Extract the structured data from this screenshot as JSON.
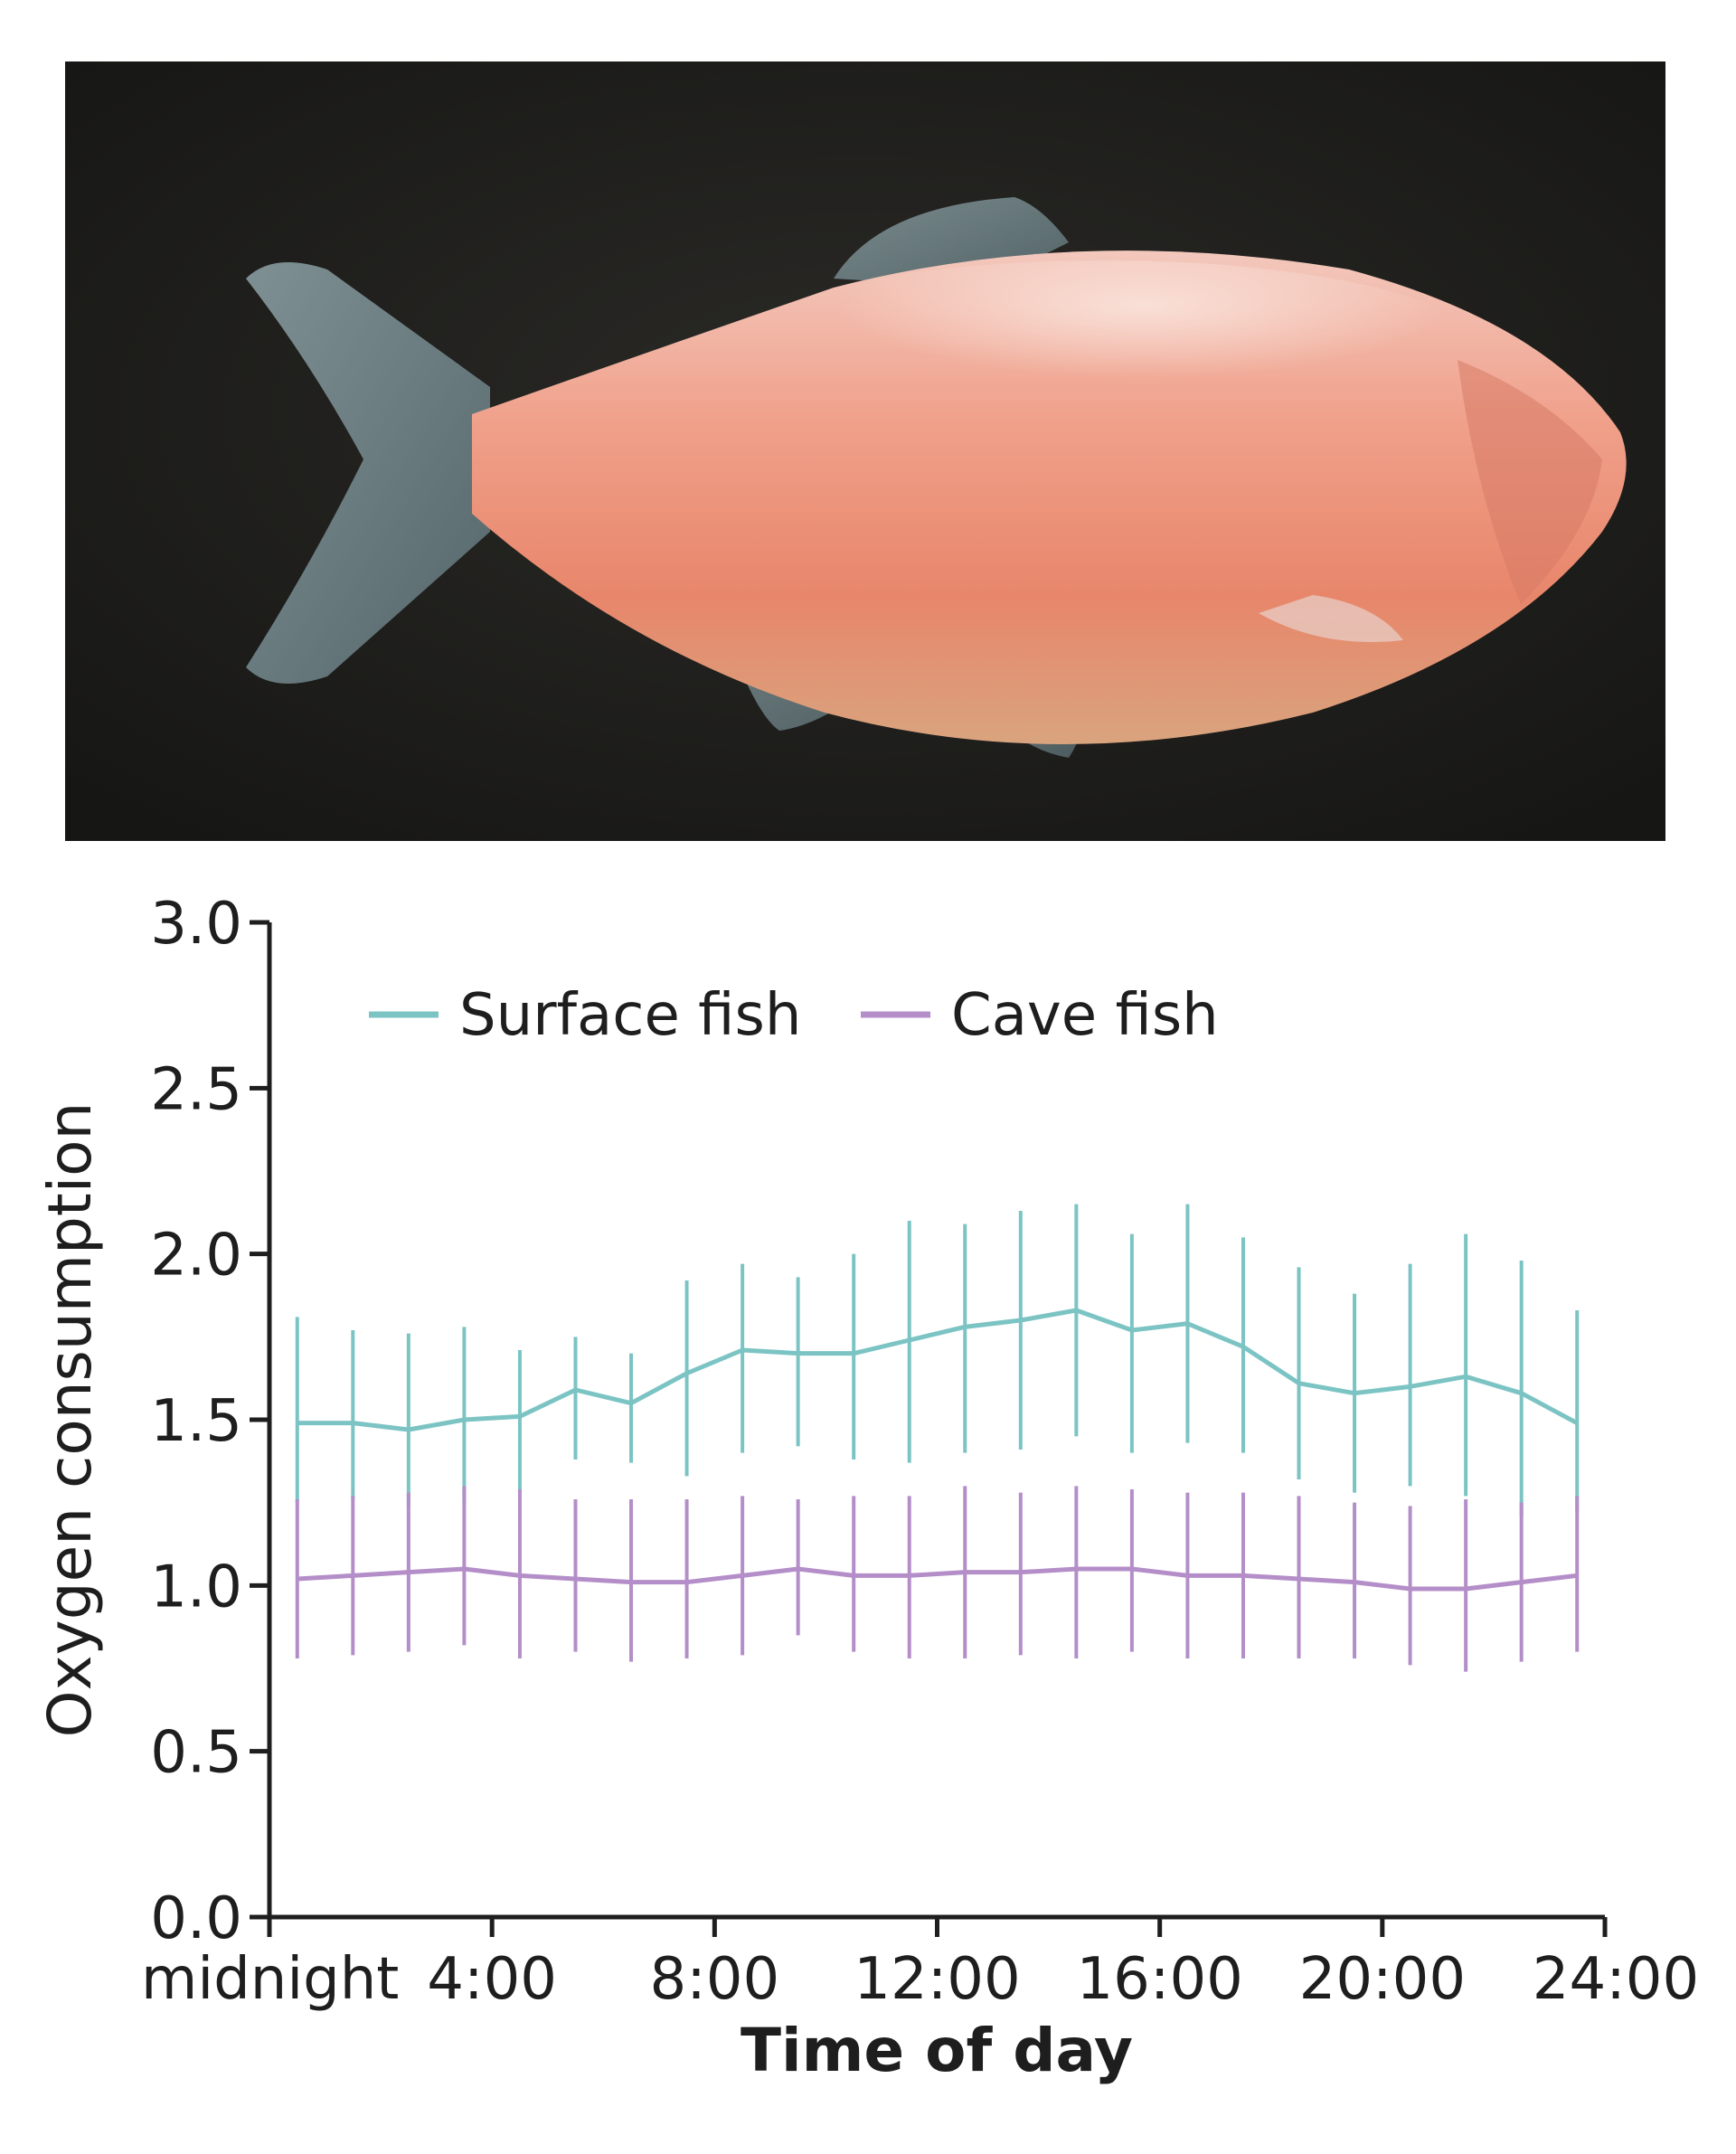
{
  "photo": {
    "subject_icon": "fish-photo"
  },
  "chart_data": {
    "type": "line",
    "xlabel": "Time of day",
    "ylabel": "Oxygen consumption",
    "xlim": [
      0,
      24
    ],
    "ylim": [
      0,
      3
    ],
    "y_ticks": [
      "0.0",
      "0.5",
      "1.0",
      "1.5",
      "2.0",
      "2.5",
      "3.0"
    ],
    "x_ticks": [
      {
        "value": 0,
        "label": "midnight"
      },
      {
        "value": 4,
        "label": "4:00"
      },
      {
        "value": 8,
        "label": "8:00"
      },
      {
        "value": 12,
        "label": "12:00"
      },
      {
        "value": 16,
        "label": "16:00"
      },
      {
        "value": 20,
        "label": "20:00"
      },
      {
        "value": 24,
        "label": "24:00"
      }
    ],
    "grid": false,
    "legend_position": "top-left",
    "x": [
      0.5,
      1.5,
      2.5,
      3.5,
      4.5,
      5.5,
      6.5,
      7.5,
      8.5,
      9.5,
      10.5,
      11.5,
      12.5,
      13.5,
      14.5,
      15.5,
      16.5,
      17.5,
      18.5,
      19.5,
      20.5,
      21.5,
      22.5,
      23.5
    ],
    "series": [
      {
        "name": "Surface fish",
        "color": "#7cc4c4",
        "values": [
          1.49,
          1.49,
          1.47,
          1.5,
          1.51,
          1.59,
          1.55,
          1.64,
          1.71,
          1.7,
          1.7,
          1.74,
          1.78,
          1.8,
          1.83,
          1.77,
          1.79,
          1.72,
          1.61,
          1.58,
          1.6,
          1.63,
          1.58,
          1.49
        ],
        "err_low": [
          1.25,
          1.26,
          1.24,
          1.25,
          1.29,
          1.38,
          1.37,
          1.33,
          1.4,
          1.42,
          1.38,
          1.37,
          1.4,
          1.41,
          1.45,
          1.4,
          1.43,
          1.4,
          1.32,
          1.28,
          1.3,
          1.27,
          1.21,
          1.22
        ],
        "err_high": [
          1.81,
          1.77,
          1.76,
          1.78,
          1.71,
          1.75,
          1.7,
          1.92,
          1.97,
          1.93,
          2.0,
          2.1,
          2.09,
          2.13,
          2.15,
          2.06,
          2.15,
          2.05,
          1.96,
          1.88,
          1.97,
          2.06,
          1.98,
          1.83
        ]
      },
      {
        "name": "Cave fish",
        "color": "#b48ec8",
        "values": [
          1.02,
          1.03,
          1.04,
          1.05,
          1.03,
          1.02,
          1.01,
          1.01,
          1.03,
          1.05,
          1.03,
          1.03,
          1.04,
          1.04,
          1.05,
          1.05,
          1.03,
          1.03,
          1.02,
          1.01,
          0.99,
          0.99,
          1.01,
          1.03
        ],
        "err_low": [
          0.78,
          0.79,
          0.8,
          0.82,
          0.78,
          0.8,
          0.77,
          0.78,
          0.79,
          0.85,
          0.8,
          0.78,
          0.78,
          0.79,
          0.78,
          0.8,
          0.78,
          0.78,
          0.78,
          0.78,
          0.76,
          0.74,
          0.77,
          0.8
        ],
        "err_high": [
          1.26,
          1.27,
          1.28,
          1.3,
          1.29,
          1.26,
          1.26,
          1.26,
          1.27,
          1.26,
          1.27,
          1.27,
          1.3,
          1.28,
          1.3,
          1.29,
          1.28,
          1.28,
          1.27,
          1.25,
          1.24,
          1.26,
          1.25,
          1.27
        ]
      }
    ]
  }
}
